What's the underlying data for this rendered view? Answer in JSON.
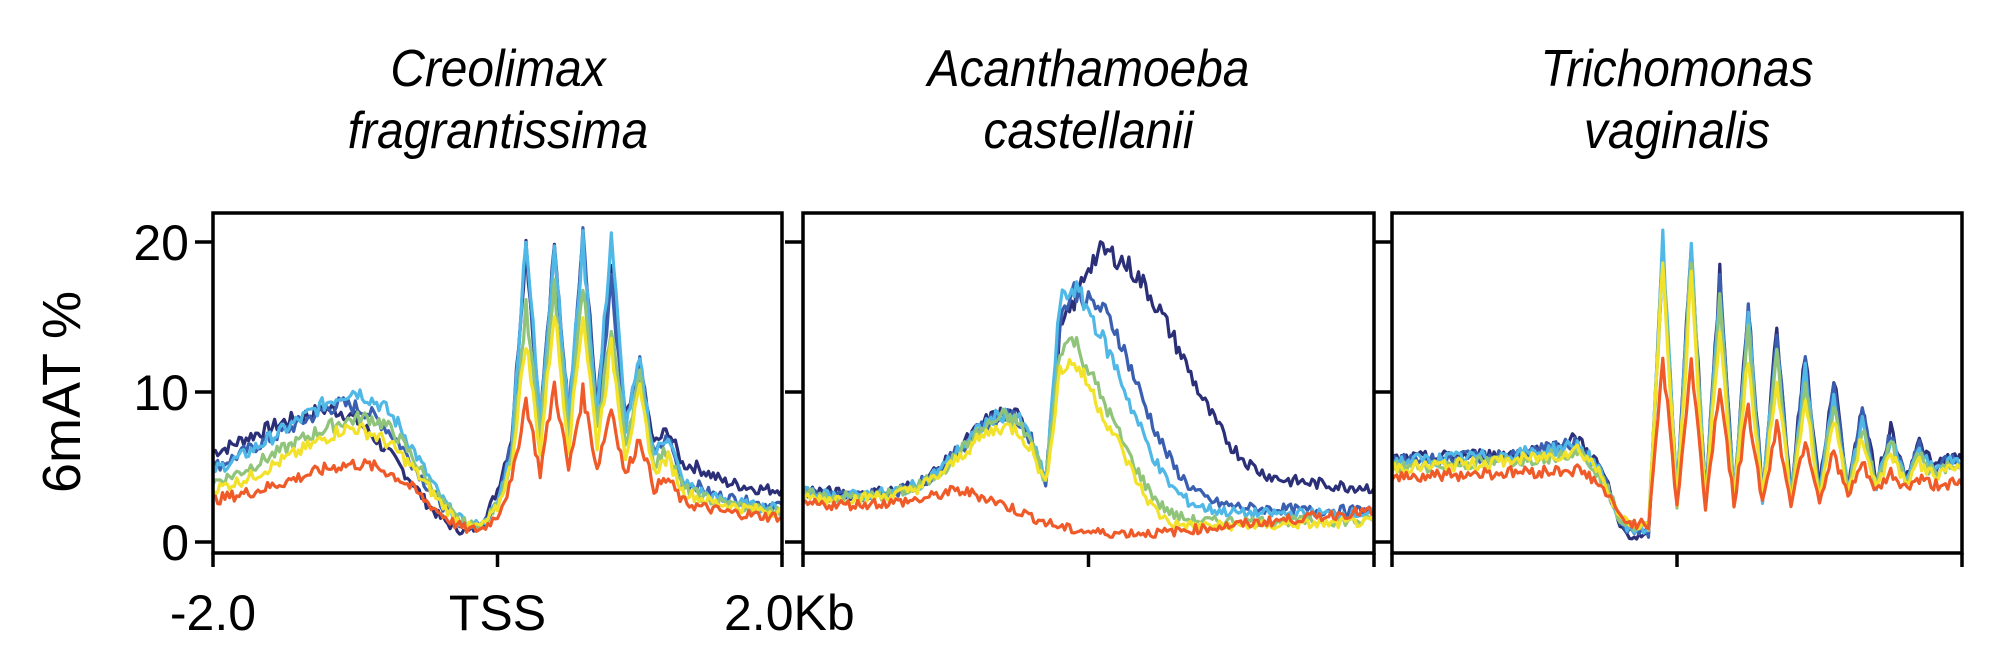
{
  "chart_data": {
    "type": "line",
    "ylabel": "6mAT %",
    "ylim": [
      0,
      22
    ],
    "yticks": [
      0,
      10,
      20
    ],
    "xlim": [
      -2.0,
      2.0
    ],
    "xtick_values": [
      -2.0,
      0,
      2.0
    ],
    "xtick_labels": [
      "-2.0",
      "TSS",
      "2.0Kb"
    ],
    "series_colors": [
      "#2b2f78",
      "#3a5fb0",
      "#4fb8e6",
      "#8fc47a",
      "#f2e22a",
      "#ef5a28"
    ],
    "x": [
      -2.0,
      -1.9,
      -1.8,
      -1.7,
      -1.6,
      -1.5,
      -1.4,
      -1.3,
      -1.2,
      -1.1,
      -1.0,
      -0.9,
      -0.8,
      -0.7,
      -0.6,
      -0.5,
      -0.4,
      -0.3,
      -0.2,
      -0.1,
      0.0,
      0.1,
      0.2,
      0.3,
      0.4,
      0.5,
      0.6,
      0.7,
      0.8,
      0.9,
      1.0,
      1.1,
      1.2,
      1.3,
      1.4,
      1.5,
      1.6,
      1.7,
      1.8,
      1.9,
      2.0
    ],
    "panels": [
      {
        "title_line1": "Creolimax",
        "title_line2": "fragrantissima",
        "show_yticklabels": true,
        "show_xticklabels": true,
        "series": [
          {
            "name": "s1",
            "values": [
              6.0,
              6.3,
              6.8,
              7.2,
              7.6,
              8.0,
              8.3,
              8.6,
              8.9,
              8.7,
              8.2,
              7.3,
              6.3,
              5.2,
              4.0,
              2.6,
              1.6,
              0.9,
              0.7,
              1.3,
              3.5,
              7.0,
              19.9,
              8.0,
              19.5,
              8.5,
              20.2,
              9.0,
              18.5,
              8.0,
              11.5,
              6.5,
              7.5,
              5.2,
              5.0,
              4.5,
              4.0,
              3.8,
              3.6,
              3.5,
              3.5
            ]
          },
          {
            "name": "s2",
            "values": [
              5.0,
              5.4,
              5.9,
              6.4,
              6.9,
              7.4,
              7.9,
              8.4,
              8.9,
              9.2,
              9.0,
              8.6,
              7.8,
              6.7,
              5.3,
              3.8,
              2.6,
              1.5,
              1.0,
              1.2,
              2.8,
              6.5,
              20.5,
              7.8,
              19.7,
              8.2,
              20.5,
              8.5,
              17.5,
              7.8,
              11.8,
              5.8,
              7.0,
              4.0,
              3.8,
              3.2,
              3.0,
              2.8,
              2.6,
              2.5,
              2.5
            ]
          },
          {
            "name": "s3",
            "values": [
              4.8,
              5.2,
              5.7,
              6.3,
              6.9,
              7.5,
              8.1,
              8.7,
              9.3,
              9.8,
              10.1,
              9.6,
              9.0,
              7.9,
              6.3,
              4.6,
              3.0,
              1.8,
              1.1,
              1.2,
              2.6,
              6.2,
              20.6,
              7.9,
              19.9,
              8.1,
              20.0,
              8.4,
              20.6,
              7.7,
              12.0,
              5.8,
              7.2,
              4.0,
              3.5,
              3.0,
              2.8,
              2.6,
              2.4,
              2.3,
              2.3
            ]
          },
          {
            "name": "s4",
            "values": [
              4.0,
              4.3,
              4.7,
              5.2,
              5.7,
              6.2,
              6.7,
              7.2,
              7.6,
              8.0,
              8.2,
              8.3,
              7.9,
              7.0,
              5.7,
              4.2,
              2.8,
              1.7,
              1.1,
              1.2,
              2.5,
              5.6,
              15.5,
              6.8,
              17.0,
              7.1,
              17.0,
              7.3,
              14.5,
              6.6,
              11.0,
              5.2,
              6.2,
              3.6,
              3.2,
              2.8,
              2.6,
              2.4,
              2.2,
              2.1,
              2.0
            ]
          },
          {
            "name": "s5",
            "values": [
              3.5,
              3.8,
              4.1,
              4.5,
              5.0,
              5.5,
              6.0,
              6.5,
              7.0,
              7.5,
              7.6,
              7.3,
              6.8,
              6.0,
              5.0,
              3.8,
              2.6,
              1.6,
              1.0,
              1.1,
              2.3,
              5.2,
              13.5,
              6.0,
              15.5,
              6.3,
              15.3,
              6.5,
              13.0,
              5.8,
              10.0,
              4.7,
              5.6,
              3.4,
              3.0,
              2.7,
              2.5,
              2.3,
              2.2,
              2.1,
              2.0
            ]
          },
          {
            "name": "s6",
            "values": [
              2.8,
              3.0,
              3.2,
              3.4,
              3.7,
              4.0,
              4.3,
              4.6,
              4.9,
              5.1,
              5.2,
              5.1,
              4.8,
              4.3,
              3.6,
              2.7,
              1.9,
              1.2,
              0.8,
              0.9,
              1.8,
              4.0,
              9.5,
              4.6,
              10.5,
              4.8,
              10.0,
              4.9,
              9.0,
              4.4,
              7.0,
              3.6,
              4.2,
              2.7,
              2.4,
              2.2,
              2.0,
              1.9,
              1.8,
              1.7,
              1.7
            ]
          }
        ]
      },
      {
        "title_line1": "Acanthamoeba",
        "title_line2": "castellanii",
        "show_yticklabels": false,
        "show_xticklabels": false,
        "series": [
          {
            "name": "s1",
            "values": [
              3.5,
              3.4,
              3.3,
              3.2,
              3.2,
              3.3,
              3.4,
              3.6,
              3.9,
              4.5,
              5.3,
              6.3,
              7.3,
              8.2,
              8.6,
              8.4,
              7.0,
              4.0,
              14.0,
              16.0,
              18.5,
              19.4,
              19.0,
              18.2,
              17.0,
              15.4,
              13.5,
              11.5,
              9.5,
              7.8,
              6.4,
              5.4,
              4.7,
              4.3,
              4.1,
              4.0,
              3.9,
              3.8,
              3.7,
              3.7,
              3.6
            ]
          },
          {
            "name": "s2",
            "values": [
              3.3,
              3.2,
              3.1,
              3.1,
              3.1,
              3.2,
              3.3,
              3.5,
              3.8,
              4.4,
              5.2,
              6.2,
              7.2,
              8.0,
              8.4,
              8.2,
              6.8,
              4.0,
              15.0,
              16.8,
              16.0,
              15.5,
              14.0,
              11.5,
              9.0,
              6.8,
              5.0,
              3.8,
              3.0,
              2.6,
              2.4,
              2.3,
              2.2,
              2.2,
              2.2,
              2.1,
              2.1,
              2.1,
              2.1,
              2.1,
              2.1
            ]
          },
          {
            "name": "s3",
            "values": [
              3.3,
              3.2,
              3.1,
              3.1,
              3.1,
              3.2,
              3.3,
              3.5,
              3.8,
              4.4,
              5.2,
              6.2,
              7.2,
              8.1,
              8.5,
              8.3,
              6.9,
              4.0,
              16.0,
              17.0,
              15.5,
              13.5,
              11.5,
              9.0,
              6.8,
              4.8,
              3.5,
              2.7,
              2.3,
              2.1,
              2.0,
              1.9,
              1.9,
              1.9,
              1.9,
              1.9,
              1.9,
              1.9,
              1.9,
              1.9,
              1.9
            ]
          },
          {
            "name": "s4",
            "values": [
              3.2,
              3.1,
              3.0,
              3.0,
              3.0,
              3.1,
              3.2,
              3.4,
              3.7,
              4.2,
              5.0,
              6.0,
              7.0,
              7.8,
              8.4,
              8.0,
              6.7,
              4.0,
              13.0,
              13.5,
              11.5,
              9.5,
              7.5,
              5.5,
              3.8,
              2.5,
              1.8,
              1.5,
              1.4,
              1.4,
              1.4,
              1.4,
              1.4,
              1.4,
              1.4,
              1.4,
              1.4,
              1.4,
              1.4,
              1.4,
              1.4
            ]
          },
          {
            "name": "s5",
            "values": [
              3.0,
              2.9,
              2.9,
              2.9,
              2.9,
              3.0,
              3.1,
              3.3,
              3.6,
              4.1,
              4.8,
              5.7,
              6.6,
              7.3,
              7.7,
              7.5,
              6.2,
              3.8,
              11.5,
              12.0,
              10.5,
              8.5,
              6.8,
              4.8,
              3.0,
              1.8,
              1.2,
              1.1,
              1.1,
              1.1,
              1.1,
              1.1,
              1.1,
              1.1,
              1.2,
              1.2,
              1.2,
              1.2,
              1.3,
              1.3,
              1.3
            ]
          },
          {
            "name": "s6",
            "values": [
              2.5,
              2.5,
              2.5,
              2.5,
              2.5,
              2.6,
              2.6,
              2.7,
              2.8,
              3.0,
              3.3,
              3.4,
              3.2,
              2.9,
              2.5,
              2.1,
              1.7,
              1.3,
              1.0,
              0.8,
              0.7,
              0.6,
              0.6,
              0.6,
              0.6,
              0.6,
              0.7,
              0.8,
              0.9,
              1.0,
              1.1,
              1.2,
              1.3,
              1.4,
              1.5,
              1.6,
              1.7,
              1.8,
              1.9,
              2.0,
              2.0
            ]
          }
        ]
      },
      {
        "title_line1": "Trichomonas",
        "title_line2": "vaginalis",
        "show_yticklabels": false,
        "show_xticklabels": false,
        "series": [
          {
            "name": "s1",
            "values": [
              5.5,
              5.5,
              5.6,
              5.6,
              5.7,
              5.7,
              5.8,
              5.8,
              5.9,
              6.0,
              6.1,
              6.3,
              6.6,
              6.9,
              5.8,
              4.2,
              1.0,
              0.3,
              0.3,
              19.3,
              3.0,
              20.0,
              3.0,
              17.8,
              3.0,
              15.8,
              3.0,
              14.5,
              3.0,
              12.8,
              3.5,
              11.0,
              3.6,
              9.0,
              4.0,
              7.6,
              4.4,
              6.6,
              5.0,
              5.6,
              5.5
            ]
          },
          {
            "name": "s2",
            "values": [
              5.4,
              5.4,
              5.5,
              5.5,
              5.6,
              5.6,
              5.7,
              5.7,
              5.8,
              5.9,
              6.0,
              6.2,
              6.4,
              6.6,
              5.6,
              4.0,
              1.2,
              0.6,
              0.6,
              19.5,
              2.8,
              20.2,
              2.8,
              17.6,
              2.9,
              15.5,
              3.0,
              14.2,
              3.0,
              12.3,
              3.3,
              10.5,
              3.5,
              8.6,
              3.9,
              7.3,
              4.3,
              6.3,
              4.8,
              5.4,
              5.3
            ]
          },
          {
            "name": "s3",
            "values": [
              5.4,
              5.4,
              5.5,
              5.5,
              5.6,
              5.6,
              5.7,
              5.7,
              5.8,
              5.9,
              6.0,
              6.1,
              6.3,
              6.5,
              5.5,
              3.9,
              1.3,
              0.8,
              0.8,
              20.0,
              2.7,
              20.0,
              2.7,
              17.0,
              2.8,
              14.8,
              2.9,
              13.2,
              2.9,
              11.5,
              3.2,
              9.9,
              3.4,
              8.2,
              3.8,
              7.0,
              4.2,
              6.1,
              4.7,
              5.3,
              5.2
            ]
          },
          {
            "name": "s4",
            "values": [
              5.0,
              5.0,
              5.1,
              5.1,
              5.2,
              5.2,
              5.3,
              5.3,
              5.4,
              5.5,
              5.6,
              5.7,
              5.9,
              6.1,
              5.2,
              3.8,
              1.5,
              1.0,
              1.0,
              19.0,
              2.6,
              19.0,
              2.6,
              16.0,
              2.7,
              14.0,
              2.8,
              12.5,
              2.8,
              10.8,
              3.1,
              9.3,
              3.3,
              7.8,
              3.7,
              6.7,
              4.1,
              5.8,
              4.5,
              5.0,
              4.9
            ]
          },
          {
            "name": "s5",
            "values": [
              5.0,
              5.0,
              5.0,
              5.1,
              5.1,
              5.2,
              5.2,
              5.3,
              5.4,
              5.5,
              5.6,
              5.7,
              5.9,
              6.2,
              5.4,
              3.9,
              1.6,
              1.1,
              1.1,
              18.5,
              2.5,
              17.5,
              2.5,
              14.5,
              2.6,
              12.5,
              2.7,
              11.0,
              2.7,
              9.6,
              3.0,
              8.3,
              3.2,
              7.0,
              3.6,
              6.1,
              4.0,
              5.3,
              4.4,
              4.8,
              4.7
            ]
          },
          {
            "name": "s6",
            "values": [
              4.4,
              4.4,
              4.4,
              4.5,
              4.5,
              4.5,
              4.6,
              4.6,
              4.6,
              4.7,
              4.7,
              4.7,
              4.8,
              4.8,
              4.3,
              3.3,
              1.7,
              1.2,
              1.2,
              12.3,
              2.4,
              12.0,
              2.4,
              10.5,
              2.5,
              9.0,
              2.6,
              7.8,
              2.6,
              6.9,
              2.8,
              6.0,
              3.0,
              5.2,
              3.3,
              4.6,
              3.6,
              4.2,
              3.8,
              3.9,
              3.8
            ]
          }
        ]
      }
    ]
  }
}
